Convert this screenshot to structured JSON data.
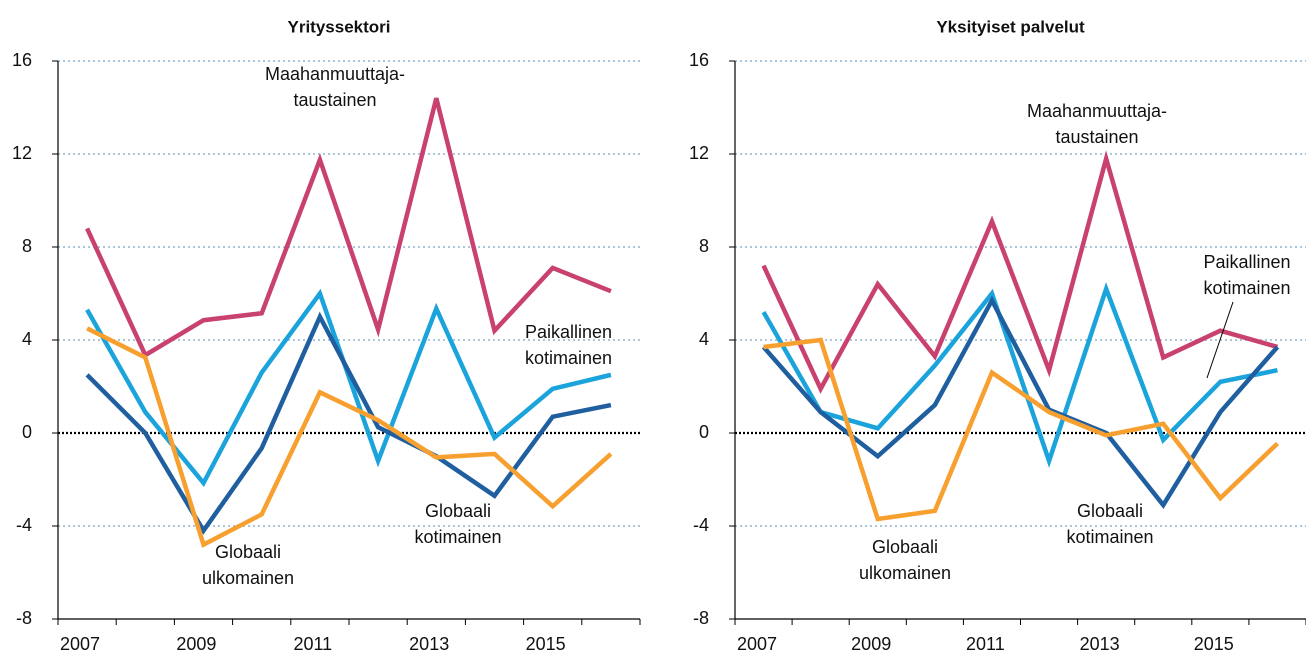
{
  "chart_data": [
    {
      "type": "line",
      "title": "Yrityssektori",
      "categories": [
        "2007",
        null,
        "2009",
        null,
        "2011",
        null,
        "2013",
        null,
        "2015",
        null
      ],
      "ylim": [
        -8,
        16
      ],
      "yticks": [
        -8,
        -4,
        0,
        4,
        8,
        12,
        16
      ],
      "grid": true,
      "series": [
        {
          "color": "#c8416f",
          "values": [
            8.8,
            3.35,
            4.85,
            5.15,
            11.75,
            4.45,
            14.4,
            4.4,
            7.1,
            6.1
          ]
        },
        {
          "color": "#1ba3dc",
          "values": [
            5.3,
            0.9,
            -2.15,
            2.6,
            6.0,
            -1.2,
            5.35,
            -0.2,
            1.9,
            2.5
          ]
        },
        {
          "color": "#1f5fa0",
          "values": [
            2.5,
            0,
            -4.2,
            -0.65,
            5.0,
            0.25,
            -1.0,
            -2.7,
            0.7,
            1.2
          ]
        },
        {
          "color": "#f7a030",
          "values": [
            4.5,
            3.25,
            -4.8,
            -3.5,
            1.75,
            0.55,
            -1.05,
            -0.9,
            -3.15,
            -0.9
          ]
        }
      ],
      "annotations": [
        {
          "lines": [
            "Maahanmuuttaja-",
            "taustainen"
          ]
        },
        {
          "lines": [
            "Paikallinen",
            "kotimainen"
          ]
        },
        {
          "lines": [
            "Globaali",
            "kotimainen"
          ]
        },
        {
          "lines": [
            "Globaali",
            "ulkomainen"
          ]
        }
      ]
    },
    {
      "type": "line",
      "title": "Yksityiset palvelut",
      "categories": [
        "2007",
        null,
        "2009",
        null,
        "2011",
        null,
        "2013",
        null,
        "2015",
        null
      ],
      "ylim": [
        -8,
        16
      ],
      "yticks": [
        -8,
        -4,
        0,
        4,
        8,
        12,
        16
      ],
      "grid": true,
      "series": [
        {
          "color": "#c8416f",
          "values": [
            7.2,
            1.9,
            6.4,
            3.3,
            9.1,
            2.7,
            11.8,
            3.25,
            4.4,
            3.7
          ]
        },
        {
          "color": "#1ba3dc",
          "values": [
            5.2,
            0.9,
            0.2,
            2.9,
            6.0,
            -1.2,
            6.2,
            -0.3,
            2.2,
            2.7
          ]
        },
        {
          "color": "#1f5fa0",
          "values": [
            3.7,
            0.9,
            -1.0,
            1.2,
            5.7,
            1.0,
            0.0,
            -3.1,
            0.9,
            3.7
          ]
        },
        {
          "color": "#f7a030",
          "values": [
            3.7,
            4.0,
            -3.7,
            -3.35,
            2.6,
            0.9,
            -0.1,
            0.4,
            -2.8,
            -0.45
          ]
        }
      ],
      "annotations": [
        {
          "lines": [
            "Maahanmuuttaja-",
            "taustainen"
          ]
        },
        {
          "lines": [
            "Paikallinen",
            "kotimainen"
          ]
        },
        {
          "lines": [
            "Globaali",
            "kotimainen"
          ]
        },
        {
          "lines": [
            "Globaali",
            "ulkomainen"
          ]
        }
      ]
    }
  ]
}
